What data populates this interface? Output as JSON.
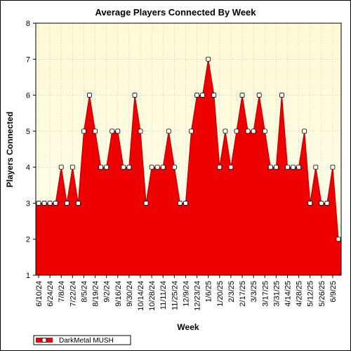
{
  "chart_data": {
    "type": "area",
    "title": "Average Players Connected By Week",
    "xlabel": "Week",
    "ylabel": "Players Connected",
    "ylim": [
      1,
      8
    ],
    "yticks": [
      1,
      2,
      3,
      4,
      5,
      6,
      7,
      8
    ],
    "grid": true,
    "legend_position": "bottom-left",
    "colors": {
      "fill": "#ee0000",
      "line": "#c80000",
      "plot_bg_top": "#fff9d6",
      "plot_bg_bottom": "#ffffee",
      "marker_fill": "#ffffff"
    },
    "x_tick_labels": [
      "6/10/24",
      "6/24/24",
      "7/8/24",
      "7/22/24",
      "8/5/24",
      "8/19/24",
      "9/2/24",
      "9/16/24",
      "9/30/24",
      "10/14/24",
      "10/28/24",
      "11/11/24",
      "11/25/24",
      "12/9/24",
      "12/23/24",
      "1/6/25",
      "1/20/25",
      "2/3/25",
      "2/17/25",
      "3/3/25",
      "3/17/25",
      "3/31/25",
      "4/14/25",
      "4/28/25",
      "5/12/25",
      "5/26/25",
      "6/9/25"
    ],
    "series": [
      {
        "name": "DarkMetal MUSH",
        "values": [
          3,
          3,
          3,
          3,
          4,
          3,
          4,
          3,
          5,
          6,
          5,
          4,
          4,
          5,
          5,
          4,
          4,
          6,
          5,
          3,
          4,
          4,
          4,
          5,
          4,
          3,
          3,
          5,
          6,
          6,
          7,
          6,
          4,
          5,
          4,
          5,
          6,
          5,
          5,
          6,
          5,
          4,
          4,
          6,
          4,
          4,
          4,
          5,
          3,
          4,
          3,
          3,
          4,
          2
        ]
      }
    ]
  }
}
